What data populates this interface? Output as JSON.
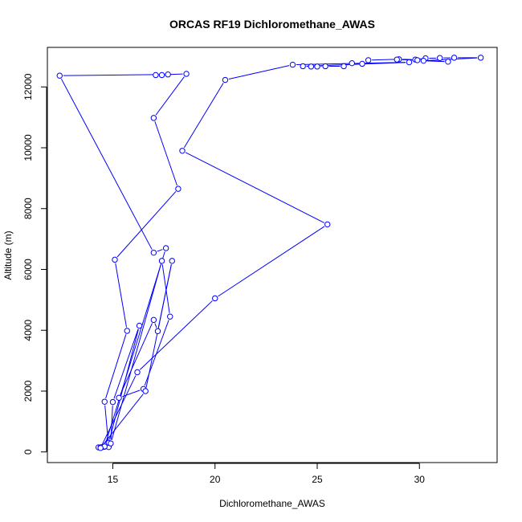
{
  "chart_data": {
    "type": "line",
    "title": "ORCAS RF19 Dichloromethane_AWAS",
    "xlabel": "Dichloromethane_AWAS",
    "ylabel": "Altitude (m)",
    "xlim": [
      11.8,
      33.8
    ],
    "ylim": [
      -350,
      13300
    ],
    "xticks": [
      15,
      20,
      25,
      30
    ],
    "yticks": [
      0,
      2000,
      4000,
      6000,
      8000,
      10000,
      12000
    ],
    "grid": false,
    "legend": "none",
    "series_color": "#0000ff",
    "series": [
      {
        "points": [
          [
            14.3,
            150
          ],
          [
            14.4,
            150
          ],
          [
            14.5,
            160
          ],
          [
            14.6,
            170
          ],
          [
            14.8,
            160
          ],
          [
            14.6,
            1650
          ],
          [
            15.7,
            3980
          ],
          [
            15.1,
            6320
          ],
          [
            18.2,
            8650
          ],
          [
            17.0,
            10980
          ],
          [
            18.6,
            12430
          ],
          [
            17.1,
            12390
          ],
          [
            17.4,
            12390
          ],
          [
            17.7,
            12410
          ],
          [
            12.4,
            12370
          ],
          [
            17.0,
            6550
          ],
          [
            17.6,
            6700
          ],
          [
            14.6,
            180
          ],
          [
            14.8,
            300
          ],
          [
            16.3,
            4150
          ],
          [
            15.0,
            1640
          ],
          [
            14.9,
            280
          ],
          [
            17.4,
            6280
          ],
          [
            17.8,
            4450
          ],
          [
            16.5,
            2070
          ],
          [
            15.3,
            1780
          ],
          [
            17.0,
            4340
          ],
          [
            17.2,
            3970
          ],
          [
            17.9,
            6280
          ],
          [
            16.6,
            2000
          ],
          [
            14.4,
            130
          ],
          [
            16.2,
            2620
          ],
          [
            20.0,
            5050
          ],
          [
            25.5,
            7480
          ],
          [
            18.4,
            9900
          ],
          [
            20.5,
            12230
          ],
          [
            23.8,
            12730
          ],
          [
            29.5,
            12810
          ],
          [
            24.3,
            12680
          ],
          [
            24.7,
            12670
          ],
          [
            25.0,
            12670
          ],
          [
            25.4,
            12680
          ],
          [
            26.3,
            12680
          ],
          [
            26.7,
            12780
          ],
          [
            27.2,
            12760
          ],
          [
            27.5,
            12880
          ],
          [
            29.0,
            12910
          ],
          [
            29.8,
            12900
          ],
          [
            30.3,
            12940
          ],
          [
            31.0,
            12950
          ],
          [
            31.7,
            12960
          ],
          [
            33.0,
            12960
          ],
          [
            30.2,
            12860
          ],
          [
            31.4,
            12830
          ],
          [
            29.9,
            12880
          ],
          [
            28.9,
            12900
          ]
        ]
      }
    ]
  }
}
